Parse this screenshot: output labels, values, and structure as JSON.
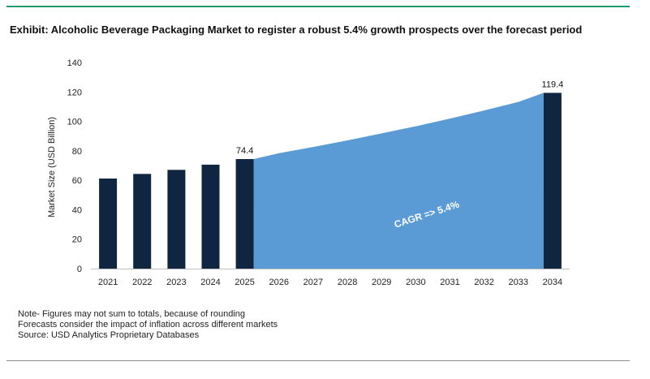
{
  "title": "Exhibit: Alcoholic Beverage Packaging Market to register a robust 5.4% growth prospects over the forecast period",
  "notes": [
    "Note- Figures may not sum to totals, because of rounding",
    "Forecasts consider the impact of inflation across different markets",
    "Source: USD Analytics Proprietary Databases"
  ],
  "colors": {
    "bar": "#0f2540",
    "area": "#5b9bd5",
    "rule_top": "#1f9a6a"
  },
  "chart_data": {
    "type": "bar",
    "title": "",
    "xlabel": "",
    "ylabel": "Market Size (USD Billion)",
    "ylim": [
      0,
      140
    ],
    "yticks": [
      0,
      20,
      40,
      60,
      80,
      100,
      120,
      140
    ],
    "categories": [
      "2021",
      "2022",
      "2023",
      "2024",
      "2025",
      "2026",
      "2027",
      "2028",
      "2029",
      "2030",
      "2031",
      "2032",
      "2033",
      "2034"
    ],
    "series": [
      {
        "type": "bar",
        "values": [
          61.2,
          64.3,
          67.1,
          70.6,
          74.4,
          null,
          null,
          null,
          null,
          null,
          null,
          null,
          null,
          119.4
        ],
        "data_labels": {
          "2025": "74.4",
          "2034": "119.4"
        }
      },
      {
        "type": "area",
        "x": [
          "2025",
          "2026",
          "2027",
          "2028",
          "2029",
          "2030",
          "2031",
          "2032",
          "2033",
          "2034"
        ],
        "values": [
          74.4,
          78.4,
          82.6,
          87.1,
          91.8,
          96.7,
          101.9,
          107.4,
          113.2,
          119.4
        ]
      }
    ],
    "annotation": "CAGR => 5.4%",
    "grid": false
  }
}
